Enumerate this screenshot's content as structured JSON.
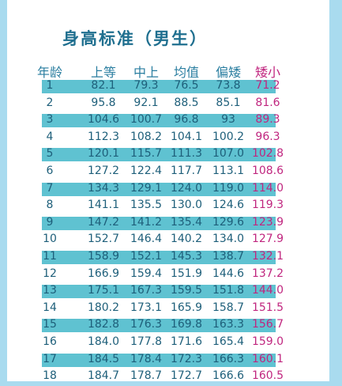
{
  "title": "身高标准（男生）",
  "columns": [
    "年龄",
    "上等",
    "中上",
    "均值",
    "偏矮",
    "矮小"
  ],
  "accent_color": "#c0267f",
  "header_color": "#2a7ea0",
  "stripe_color": "#5fc2d1",
  "rows": [
    [
      "1",
      "82.1",
      "79.3",
      "76.5",
      "73.8",
      "71.2"
    ],
    [
      "2",
      "95.8",
      "92.1",
      "88.5",
      "85.1",
      "81.6"
    ],
    [
      "3",
      "104.6",
      "100.7",
      "96.8",
      "93",
      "89.3"
    ],
    [
      "4",
      "112.3",
      "108.2",
      "104.1",
      "100.2",
      "96.3"
    ],
    [
      "5",
      "120.1",
      "115.7",
      "111.3",
      "107.0",
      "102.8"
    ],
    [
      "6",
      "127.2",
      "122.4",
      "117.7",
      "113.1",
      "108.6"
    ],
    [
      "7",
      "134.3",
      "129.1",
      "124.0",
      "119.0",
      "114.0"
    ],
    [
      "8",
      "141.1",
      "135.5",
      "130.0",
      "124.6",
      "119.3"
    ],
    [
      "9",
      "147.2",
      "141.2",
      "135.4",
      "129.6",
      "123.9"
    ],
    [
      "10",
      "152.7",
      "146.4",
      "140.2",
      "134.0",
      "127.9"
    ],
    [
      "11",
      "158.9",
      "152.1",
      "145.3",
      "138.7",
      "132.1"
    ],
    [
      "12",
      "166.9",
      "159.4",
      "151.9",
      "144.6",
      "137.2"
    ],
    [
      "13",
      "175.1",
      "167.3",
      "159.5",
      "151.8",
      "144.0"
    ],
    [
      "14",
      "180.2",
      "173.1",
      "165.9",
      "158.7",
      "151.5"
    ],
    [
      "15",
      "182.8",
      "176.3",
      "169.8",
      "163.3",
      "156.7"
    ],
    [
      "16",
      "184.0",
      "177.8",
      "171.6",
      "165.4",
      "159.0"
    ],
    [
      "17",
      "184.5",
      "178.4",
      "172.3",
      "166.3",
      "160.1"
    ],
    [
      "18",
      "184.7",
      "178.7",
      "172.7",
      "166.6",
      "160.5"
    ]
  ]
}
